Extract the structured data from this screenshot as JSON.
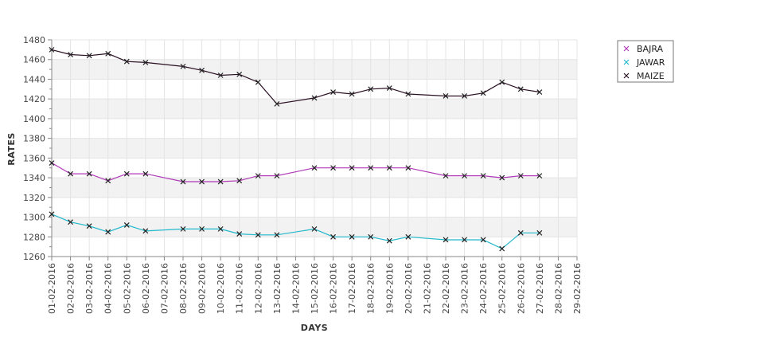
{
  "chart_data": {
    "type": "line",
    "title": "",
    "xlabel": "DAYS",
    "ylabel": "RATES",
    "ylim": [
      1260,
      1480
    ],
    "yticks": [
      1260,
      1280,
      1300,
      1320,
      1340,
      1360,
      1380,
      1400,
      1420,
      1440,
      1460,
      1480
    ],
    "categories": [
      "01-02-2016",
      "02-02-2016",
      "03-02-2016",
      "04-02-2016",
      "05-02-2016",
      "06-02-2016",
      "07-02-2016",
      "08-02-2016",
      "09-02-2016",
      "10-02-2016",
      "11-02-2016",
      "12-02-2016",
      "13-02-2016",
      "14-02-2016",
      "15-02-2016",
      "16-02-2016",
      "17-02-2016",
      "18-02-2016",
      "19-02-2016",
      "20-02-2016",
      "21-02-2016",
      "22-02-2016",
      "23-02-2016",
      "24-02-2016",
      "25-02-2016",
      "26-02-2016",
      "27-02-2016",
      "28-02-2016",
      "29-02-2016"
    ],
    "grid": true,
    "legend_position": "top-right",
    "series": [
      {
        "name": "BAJRA",
        "color": "#b03ab8",
        "points": [
          [
            1,
            1355
          ],
          [
            2,
            1344
          ],
          [
            3,
            1344
          ],
          [
            4,
            1337
          ],
          [
            5,
            1344
          ],
          [
            6,
            1344
          ],
          [
            8,
            1336
          ],
          [
            9,
            1336
          ],
          [
            10,
            1336
          ],
          [
            11,
            1337
          ],
          [
            12,
            1342
          ],
          [
            13,
            1342
          ],
          [
            15,
            1350
          ],
          [
            16,
            1350
          ],
          [
            17,
            1350
          ],
          [
            18,
            1350
          ],
          [
            19,
            1350
          ],
          [
            20,
            1350
          ],
          [
            22,
            1342
          ],
          [
            23,
            1342
          ],
          [
            24,
            1342
          ],
          [
            25,
            1340
          ],
          [
            26,
            1342
          ],
          [
            27,
            1342
          ]
        ]
      },
      {
        "name": "JAWAR",
        "color": "#22b8cc",
        "points": [
          [
            1,
            1303
          ],
          [
            2,
            1295
          ],
          [
            3,
            1291
          ],
          [
            4,
            1285
          ],
          [
            5,
            1292
          ],
          [
            6,
            1286
          ],
          [
            8,
            1288
          ],
          [
            9,
            1288
          ],
          [
            10,
            1288
          ],
          [
            11,
            1283
          ],
          [
            12,
            1282
          ],
          [
            13,
            1282
          ],
          [
            15,
            1288
          ],
          [
            16,
            1280
          ],
          [
            17,
            1280
          ],
          [
            18,
            1280
          ],
          [
            19,
            1276
          ],
          [
            20,
            1280
          ],
          [
            22,
            1277
          ],
          [
            23,
            1277
          ],
          [
            24,
            1277
          ],
          [
            25,
            1268
          ],
          [
            26,
            1284
          ],
          [
            27,
            1284
          ]
        ]
      },
      {
        "name": "MAIZE",
        "color": "#2a0f22",
        "points": [
          [
            1,
            1470
          ],
          [
            2,
            1465
          ],
          [
            3,
            1464
          ],
          [
            4,
            1466
          ],
          [
            5,
            1458
          ],
          [
            6,
            1457
          ],
          [
            8,
            1453
          ],
          [
            9,
            1449
          ],
          [
            10,
            1444
          ],
          [
            11,
            1445
          ],
          [
            12,
            1437
          ],
          [
            13,
            1415
          ],
          [
            15,
            1421
          ],
          [
            16,
            1427
          ],
          [
            17,
            1425
          ],
          [
            18,
            1430
          ],
          [
            19,
            1431
          ],
          [
            20,
            1425
          ],
          [
            22,
            1423
          ],
          [
            23,
            1423
          ],
          [
            24,
            1426
          ],
          [
            25,
            1437
          ],
          [
            26,
            1430
          ],
          [
            27,
            1427
          ]
        ]
      }
    ]
  }
}
